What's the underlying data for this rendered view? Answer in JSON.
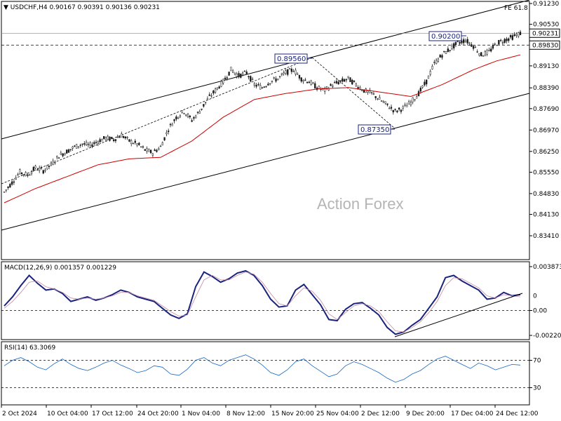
{
  "chart_data": [
    {
      "type": "candlestick",
      "symbol": "USDCHF,H4",
      "ohlc_header": "0.90167 0.90391 0.90136 0.90231",
      "y_ticks": [
        "0.91230",
        "0.90530",
        "0.89830",
        "0.89130",
        "0.88390",
        "0.87690",
        "0.86970",
        "0.86250",
        "0.85550",
        "0.84830",
        "0.84130",
        "0.83410"
      ],
      "y_tick_values": [
        0.9123,
        0.9053,
        0.8983,
        0.8913,
        0.8839,
        0.8769,
        0.8697,
        0.8625,
        0.8555,
        0.8483,
        0.8413,
        0.8341
      ],
      "ylim": [
        0.8341,
        0.9123
      ],
      "current_price": "0.90231",
      "support_level": "0.89830",
      "annotations": {
        "fe_label": "FE 61.8",
        "high_1": "0.89560",
        "low_1": "0.87350",
        "high_2": "0.90200"
      },
      "watermark": "Action Forex",
      "price_path": [
        [
          0,
          0.8488
        ],
        [
          4,
          0.852
        ],
        [
          8,
          0.8555
        ],
        [
          12,
          0.8545
        ],
        [
          16,
          0.857
        ],
        [
          20,
          0.856
        ],
        [
          24,
          0.858
        ],
        [
          28,
          0.861
        ],
        [
          32,
          0.8625
        ],
        [
          36,
          0.864
        ],
        [
          40,
          0.865
        ],
        [
          44,
          0.8645
        ],
        [
          48,
          0.866
        ],
        [
          52,
          0.867
        ],
        [
          56,
          0.8665
        ],
        [
          60,
          0.868
        ],
        [
          64,
          0.866
        ],
        [
          68,
          0.865
        ],
        [
          72,
          0.863
        ],
        [
          76,
          0.862
        ],
        [
          80,
          0.864
        ],
        [
          84,
          0.87
        ],
        [
          88,
          0.874
        ],
        [
          92,
          0.876
        ],
        [
          96,
          0.873
        ],
        [
          100,
          0.876
        ],
        [
          104,
          0.88
        ],
        [
          108,
          0.883
        ],
        [
          112,
          0.886
        ],
        [
          116,
          0.89
        ],
        [
          120,
          0.888
        ],
        [
          124,
          0.889
        ],
        [
          128,
          0.885
        ],
        [
          132,
          0.884
        ],
        [
          136,
          0.886
        ],
        [
          140,
          0.887
        ],
        [
          144,
          0.889
        ],
        [
          148,
          0.89
        ],
        [
          152,
          0.887
        ],
        [
          156,
          0.886
        ],
        [
          160,
          0.884
        ],
        [
          164,
          0.883
        ],
        [
          168,
          0.885
        ],
        [
          172,
          0.886
        ],
        [
          176,
          0.887
        ],
        [
          180,
          0.885
        ],
        [
          184,
          0.883
        ],
        [
          188,
          0.882
        ],
        [
          192,
          0.88
        ],
        [
          196,
          0.878
        ],
        [
          200,
          0.876
        ],
        [
          204,
          0.877
        ],
        [
          208,
          0.879
        ],
        [
          212,
          0.882
        ],
        [
          216,
          0.886
        ],
        [
          220,
          0.892
        ],
        [
          224,
          0.895
        ],
        [
          228,
          0.897
        ],
        [
          232,
          0.899
        ],
        [
          236,
          0.9
        ],
        [
          240,
          0.898
        ],
        [
          244,
          0.895
        ],
        [
          248,
          0.896
        ],
        [
          252,
          0.899
        ],
        [
          256,
          0.9
        ],
        [
          260,
          0.901
        ],
        [
          264,
          0.9023
        ]
      ],
      "ma_path": [
        [
          0,
          0.8452
        ],
        [
          16,
          0.85
        ],
        [
          32,
          0.854
        ],
        [
          48,
          0.858
        ],
        [
          64,
          0.86
        ],
        [
          80,
          0.8605
        ],
        [
          96,
          0.866
        ],
        [
          112,
          0.874
        ],
        [
          128,
          0.88
        ],
        [
          144,
          0.882
        ],
        [
          160,
          0.8835
        ],
        [
          176,
          0.884
        ],
        [
          192,
          0.8825
        ],
        [
          208,
          0.881
        ],
        [
          224,
          0.885
        ],
        [
          240,
          0.89
        ],
        [
          252,
          0.893
        ],
        [
          264,
          0.895
        ]
      ]
    },
    {
      "type": "line",
      "title": "MACD(12,26,9) 0.001357 0.001229",
      "y_ticks": [
        "0.003873",
        "0.00",
        "-0.002201"
      ],
      "y_tick_values": [
        0.003873,
        0.0,
        -0.002201
      ],
      "ylim": [
        -0.002201,
        0.003873
      ],
      "last_tag": "0",
      "series": [
        {
          "values": [
            0.0004,
            0.0012,
            0.0022,
            0.0031,
            0.0024,
            0.0018,
            0.0019,
            0.0015,
            0.0008,
            0.001,
            0.0012,
            0.0009,
            0.0011,
            0.0014,
            0.0018,
            0.0016,
            0.0012,
            0.001,
            0.0008,
            0.0002,
            -0.0004,
            -0.0007,
            -0.0003,
            0.0021,
            0.0034,
            0.003,
            0.0025,
            0.0028,
            0.0033,
            0.0035,
            0.0031,
            0.0022,
            0.001,
            0.0003,
            0.0004,
            0.0018,
            0.0023,
            0.0014,
            0.0005,
            -0.0008,
            -0.0009,
            0.0001,
            0.0006,
            0.0007,
            0.0002,
            -0.0004,
            -0.0015,
            -0.0021,
            -0.0019,
            -0.0013,
            -0.0008,
            0.0002,
            0.0012,
            0.0029,
            0.0031,
            0.0026,
            0.0022,
            0.0018,
            0.001,
            0.0011,
            0.0016,
            0.0013,
            0.0014
          ]
        },
        {
          "values": [
            0.0002,
            0.0008,
            0.0016,
            0.0025,
            0.0026,
            0.0021,
            0.0019,
            0.0016,
            0.0011,
            0.001,
            0.0011,
            0.001,
            0.0011,
            0.0013,
            0.0016,
            0.0016,
            0.0013,
            0.0011,
            0.0009,
            0.0004,
            -0.0001,
            -0.0005,
            -0.0004,
            0.0012,
            0.0027,
            0.0031,
            0.0027,
            0.0027,
            0.0031,
            0.0034,
            0.0032,
            0.0025,
            0.0015,
            0.0006,
            0.0004,
            0.0013,
            0.002,
            0.0017,
            0.0009,
            -0.0003,
            -0.0008,
            -0.0002,
            0.0004,
            0.0006,
            0.0004,
            -0.0001,
            -0.001,
            -0.0018,
            -0.0019,
            -0.0015,
            -0.001,
            -0.0002,
            0.0008,
            0.0022,
            0.0029,
            0.0028,
            0.0024,
            0.002,
            0.0013,
            0.0011,
            0.0014,
            0.0013,
            0.0012
          ]
        }
      ]
    },
    {
      "type": "line",
      "title": "RSI(14) 63.3069",
      "y_ticks": [
        "70",
        "30"
      ],
      "y_tick_values": [
        70,
        30
      ],
      "ylim": [
        10,
        90
      ],
      "series": [
        {
          "values": [
            62,
            70,
            74,
            68,
            60,
            56,
            65,
            72,
            64,
            58,
            55,
            60,
            66,
            70,
            63,
            58,
            52,
            55,
            62,
            60,
            50,
            48,
            57,
            70,
            74,
            66,
            62,
            70,
            74,
            78,
            72,
            63,
            52,
            48,
            56,
            68,
            72,
            62,
            54,
            46,
            50,
            62,
            68,
            64,
            58,
            52,
            44,
            38,
            42,
            50,
            55,
            64,
            72,
            76,
            70,
            64,
            58,
            66,
            62,
            56,
            60,
            64,
            63
          ]
        }
      ]
    }
  ],
  "x_labels": [
    "2 Oct 2024",
    "10 Oct 04:00",
    "17 Oct 12:00",
    "24 Oct 20:00",
    "1 Nov 04:00",
    "8 Nov 12:00",
    "15 Nov 20:00",
    "25 Nov 04:00",
    "2 Dec 12:00",
    "9 Dec 20:00",
    "17 Dec 04:00",
    "24 Dec 12:00"
  ]
}
